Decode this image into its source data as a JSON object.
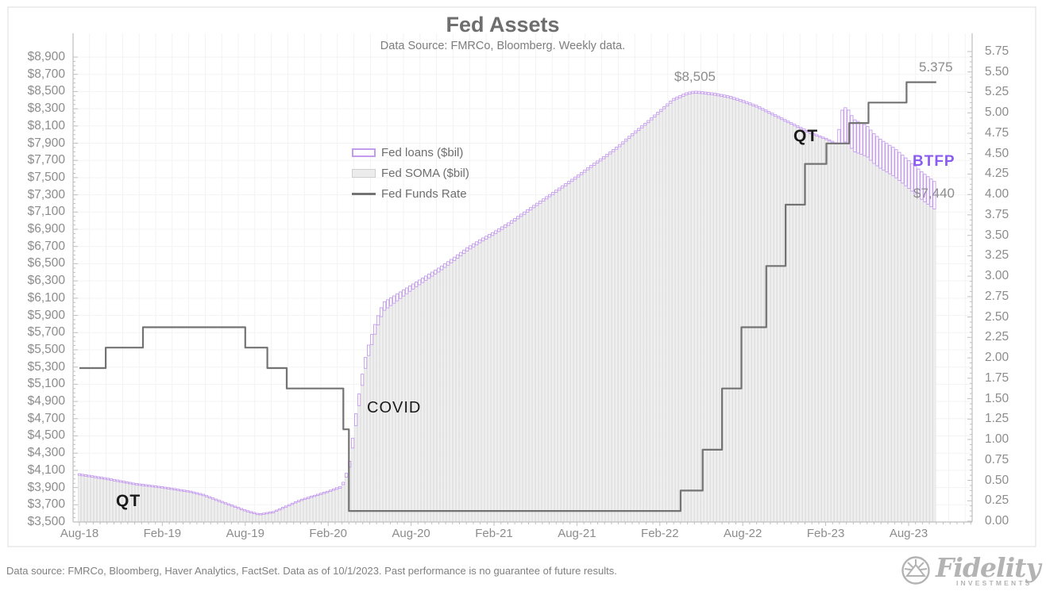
{
  "chart_data": {
    "type": "bar+line",
    "title": "Fed Assets",
    "subtitle": "Data Source: FMRCo, Bloomberg.  Weekly data.",
    "x_description": "Weekly observations, Aug-2018 through Oct-2023; keyframe x values are months since Aug-2018",
    "x_ticks": [
      "Aug-18",
      "Feb-19",
      "Aug-19",
      "Feb-20",
      "Aug-20",
      "Feb-21",
      "Aug-21",
      "Feb-22",
      "Aug-22",
      "Feb-23",
      "Aug-23"
    ],
    "left_axis": {
      "units": "$ billions",
      "min": 3500,
      "max": 8900,
      "step": 200,
      "ticks": [
        "$8,900",
        "$8,700",
        "$8,500",
        "$8,300",
        "$8,100",
        "$7,900",
        "$7,700",
        "$7,500",
        "$7,300",
        "$7,100",
        "$6,900",
        "$6,700",
        "$6,500",
        "$6,300",
        "$6,100",
        "$5,900",
        "$5,700",
        "$5,500",
        "$5,300",
        "$5,100",
        "$4,900",
        "$4,700",
        "$4,500",
        "$4,300",
        "$4,100",
        "$3,900",
        "$3,700",
        "$3,500"
      ]
    },
    "right_axis": {
      "units": "percent",
      "min": 0,
      "max": 5.75,
      "step": 0.25,
      "ticks": [
        "5.75",
        "5.50",
        "5.25",
        "5.00",
        "4.75",
        "4.50",
        "4.25",
        "4.00",
        "3.75",
        "3.50",
        "3.25",
        "3.00",
        "2.75",
        "2.50",
        "2.25",
        "2.00",
        "1.75",
        "1.50",
        "1.25",
        "1.00",
        "0.75",
        "0.50",
        "0.25",
        "0.00"
      ]
    },
    "legend": {
      "loans": "Fed loans ($bil)",
      "soma": "Fed SOMA ($bil)",
      "rate": "Fed Funds Rate"
    },
    "annotations": {
      "qt_left": "QT",
      "covid": "COVID",
      "qt_right": "QT",
      "peak": "$8,505",
      "btfp": "BTFP",
      "end_total": "$7,440",
      "end_rate": "5.375"
    },
    "series": {
      "total_assets_keyframes": [
        [
          0,
          4060
        ],
        [
          2,
          4010
        ],
        [
          4,
          3950
        ],
        [
          6,
          3910
        ],
        [
          8,
          3860
        ],
        [
          9,
          3820
        ],
        [
          10,
          3760
        ],
        [
          11,
          3700
        ],
        [
          12,
          3640
        ],
        [
          13,
          3595
        ],
        [
          14,
          3620
        ],
        [
          15,
          3690
        ],
        [
          16,
          3760
        ],
        [
          17,
          3810
        ],
        [
          18,
          3860
        ],
        [
          19,
          3920
        ],
        [
          19.5,
          4150
        ],
        [
          19.8,
          4500
        ],
        [
          20,
          4750
        ],
        [
          20.3,
          5050
        ],
        [
          20.6,
          5350
        ],
        [
          21,
          5600
        ],
        [
          21.5,
          5850
        ],
        [
          22,
          6050
        ],
        [
          23,
          6150
        ],
        [
          24,
          6250
        ],
        [
          25,
          6350
        ],
        [
          26,
          6450
        ],
        [
          27,
          6560
        ],
        [
          28,
          6680
        ],
        [
          29,
          6780
        ],
        [
          30,
          6870
        ],
        [
          31,
          6970
        ],
        [
          32,
          7080
        ],
        [
          33,
          7190
        ],
        [
          34,
          7300
        ],
        [
          35,
          7410
        ],
        [
          36,
          7520
        ],
        [
          37,
          7640
        ],
        [
          38,
          7750
        ],
        [
          39,
          7870
        ],
        [
          40,
          8010
        ],
        [
          41,
          8140
        ],
        [
          42,
          8280
        ],
        [
          43,
          8420
        ],
        [
          44,
          8490
        ],
        [
          44.5,
          8505
        ],
        [
          45,
          8500
        ],
        [
          46,
          8480
        ],
        [
          47,
          8450
        ],
        [
          48,
          8400
        ],
        [
          49,
          8340
        ],
        [
          50,
          8260
        ],
        [
          51,
          8180
        ],
        [
          52,
          8100
        ],
        [
          53,
          8020
        ],
        [
          54,
          7960
        ],
        [
          54.8,
          7900
        ],
        [
          55.2,
          8290
        ],
        [
          55.5,
          8320
        ],
        [
          55.8,
          8250
        ],
        [
          56,
          8180
        ],
        [
          57,
          8100
        ],
        [
          57.5,
          8010
        ],
        [
          58,
          7940
        ],
        [
          59,
          7840
        ],
        [
          60,
          7700
        ],
        [
          61,
          7560
        ],
        [
          62,
          7440
        ]
      ],
      "fed_loans_keyframes": [
        [
          0,
          18
        ],
        [
          6,
          16
        ],
        [
          12,
          15
        ],
        [
          18,
          15
        ],
        [
          19,
          20
        ],
        [
          19.5,
          60
        ],
        [
          19.8,
          120
        ],
        [
          20,
          140
        ],
        [
          21,
          120
        ],
        [
          22,
          100
        ],
        [
          23,
          80
        ],
        [
          24,
          60
        ],
        [
          25,
          50
        ],
        [
          26,
          45
        ],
        [
          27,
          40
        ],
        [
          28,
          38
        ],
        [
          30,
          32
        ],
        [
          32,
          28
        ],
        [
          34,
          26
        ],
        [
          36,
          25
        ],
        [
          40,
          24
        ],
        [
          44,
          24
        ],
        [
          48,
          22
        ],
        [
          52,
          18
        ],
        [
          54,
          15
        ],
        [
          54.8,
          15
        ],
        [
          55.2,
          390
        ],
        [
          55.5,
          400
        ],
        [
          56,
          375
        ],
        [
          57,
          355
        ],
        [
          58,
          335
        ],
        [
          59,
          328
        ],
        [
          60,
          322
        ],
        [
          61,
          320
        ],
        [
          62,
          320
        ]
      ],
      "fed_funds_rate_steps": [
        [
          0,
          1.875
        ],
        [
          1.9,
          2.125
        ],
        [
          4.6,
          2.375
        ],
        [
          12,
          2.125
        ],
        [
          13.6,
          1.875
        ],
        [
          15,
          1.625
        ],
        [
          19.1,
          1.125
        ],
        [
          19.5,
          0.125
        ],
        [
          43.5,
          0.375
        ],
        [
          45.1,
          0.875
        ],
        [
          46.5,
          1.625
        ],
        [
          47.9,
          2.375
        ],
        [
          49.7,
          3.125
        ],
        [
          51.1,
          3.875
        ],
        [
          52.5,
          4.375
        ],
        [
          54.05,
          4.625
        ],
        [
          55.7,
          4.875
        ],
        [
          57.1,
          5.125
        ],
        [
          59.85,
          5.375
        ],
        [
          62,
          5.375
        ]
      ],
      "note": "Fed SOMA = total_assets - fed_loans; bars weekly; rate is a step line on right axis"
    },
    "colors": {
      "loans_border": "#c49cee",
      "loans_fill": "#ffffff",
      "soma_fill": "#efefef",
      "soma_border": "#d9d9d9",
      "rate_line": "#737373",
      "axis_text": "#8c8c8c",
      "grid": "#f3f3f3",
      "btfp_text": "#8a5cf0",
      "annotation_text": "#1a1a1a",
      "title_text": "#6e6e6e"
    },
    "layout_hints": {
      "grid": true,
      "legend_position": "upper-left inside plot",
      "bars_baseline": 3500
    }
  },
  "footer": {
    "note": "Data source: FMRCo, Bloomberg, Haver Analytics, FactSet. Data as of 10/1/2023. Past performance is no guarantee of future results."
  },
  "logo": {
    "name": "Fidelity",
    "sub": "INVESTMENTS"
  }
}
